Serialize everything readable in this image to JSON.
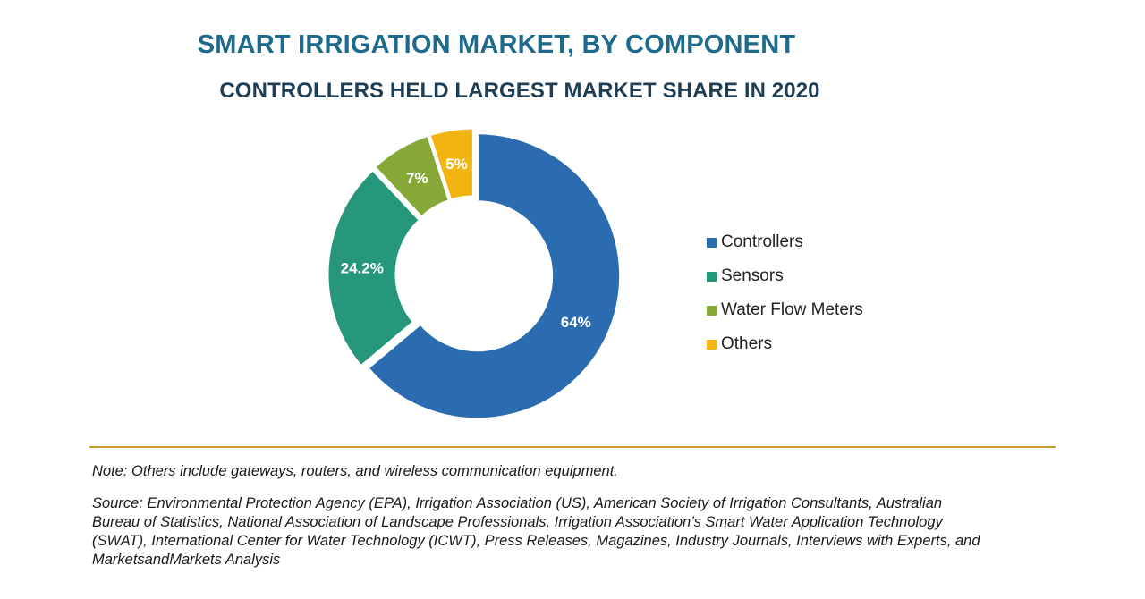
{
  "chart_data": {
    "type": "pie",
    "variant": "donut",
    "title": "SMART IRRIGATION MARKET, BY COMPONENT",
    "subtitle": "CONTROLLERS HELD LARGEST MARKET SHARE IN 2020",
    "categories": [
      "Controllers",
      "Sensors",
      "Water Flow Meters",
      "Others"
    ],
    "values": [
      64,
      24.2,
      7,
      5
    ],
    "data_labels": [
      "64%",
      "24.2%",
      "7%",
      "5%"
    ],
    "colors": [
      "#2b6cb1",
      "#27977b",
      "#86a838",
      "#f1b410"
    ],
    "legend_position": "right",
    "grid": false
  },
  "footer": {
    "note": "Note: Others include gateways, routers, and wireless communication equipment.",
    "source_lines": [
      "Source: Environmental Protection Agency (EPA), Irrigation Association (US), American Society of Irrigation Consultants, Australian",
      "Bureau of Statistics, National Association of Landscape Professionals, Irrigation Association’s Smart Water Application Technology",
      "(SWAT), International Center for Water Technology (ICWT), Press Releases, Magazines, Industry Journals, Interviews with Experts, and",
      "MarketsandMarkets Analysis"
    ]
  }
}
